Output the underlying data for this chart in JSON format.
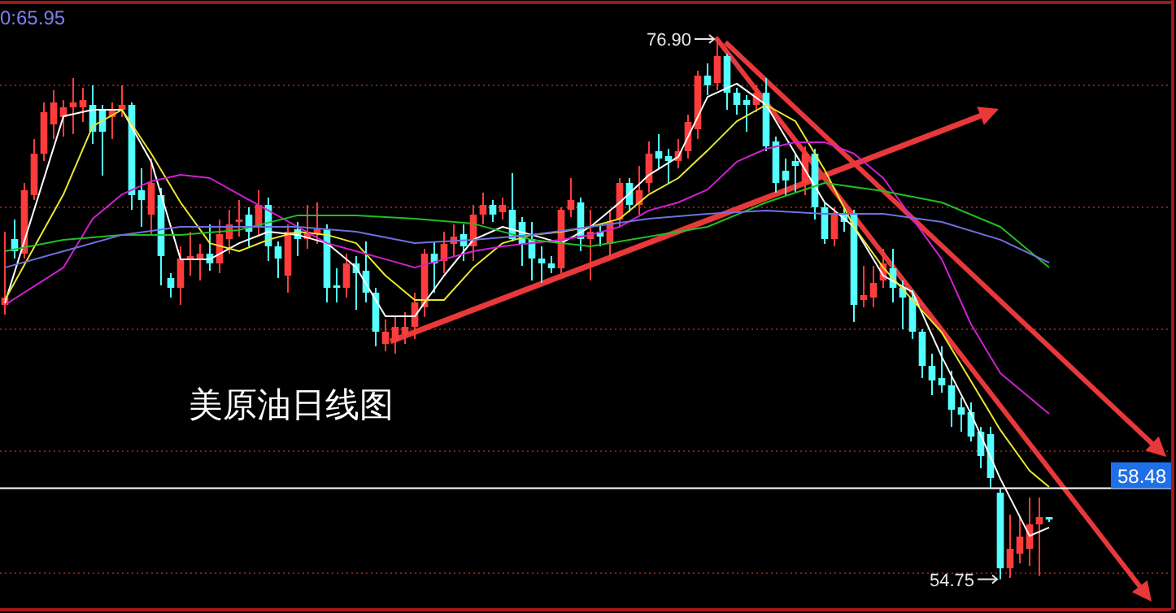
{
  "chart_data": {
    "type": "candlestick",
    "grid": "y",
    "ylim": [
      53.5,
      78.3
    ],
    "yticks": [
      {
        "value": 55,
        "label": null
      },
      {
        "value": 60,
        "label": null
      },
      {
        "value": 65,
        "label": null
      },
      {
        "value": 70,
        "label": null
      },
      {
        "value": 75,
        "label": null
      }
    ],
    "categories": [
      null,
      null,
      null,
      null,
      null,
      null,
      null,
      null,
      null,
      null,
      null,
      null,
      null,
      null,
      null,
      null,
      null,
      null,
      null,
      null,
      null,
      null,
      null,
      null,
      null,
      null,
      null,
      null,
      null,
      null,
      null,
      null,
      null,
      null,
      null,
      null,
      null,
      null,
      null,
      null,
      null,
      null,
      null,
      null,
      null,
      null,
      null,
      null,
      null,
      null,
      null,
      null,
      null,
      null,
      null,
      null,
      null,
      null,
      null,
      null,
      null,
      null,
      null,
      null,
      null,
      null,
      null,
      null,
      null,
      null,
      null,
      null,
      null,
      null,
      null,
      null,
      null,
      null,
      null,
      null,
      null,
      null,
      null,
      null,
      null,
      null,
      null,
      null,
      null,
      null,
      null,
      null,
      null,
      null,
      null,
      null,
      null,
      null,
      null,
      null,
      null,
      null,
      null,
      null,
      null,
      null,
      null,
      null
    ],
    "ohlc": [
      [
        66.0,
        69.0,
        65.6,
        66.3
      ],
      [
        68.7,
        69.5,
        67.9,
        68.2
      ],
      [
        68.1,
        71.0,
        67.9,
        70.7
      ],
      [
        70.5,
        72.8,
        70.3,
        72.2
      ],
      [
        72.2,
        74.3,
        71.9,
        73.9
      ],
      [
        73.4,
        74.8,
        72.8,
        74.3
      ],
      [
        73.7,
        74.4,
        72.9,
        74.1
      ],
      [
        74.1,
        75.3,
        73.0,
        74.3
      ],
      [
        74.1,
        74.9,
        73.5,
        74.4
      ],
      [
        74.2,
        75.0,
        72.6,
        73.1
      ],
      [
        74.0,
        74.2,
        71.3,
        73.1
      ],
      [
        73.7,
        74.3,
        72.8,
        74.0
      ],
      [
        74.0,
        75.0,
        73.7,
        74.2
      ],
      [
        74.2,
        74.3,
        69.9,
        70.5
      ],
      [
        70.7,
        71.6,
        69.2,
        70.3
      ],
      [
        69.7,
        72.0,
        68.9,
        71.0
      ],
      [
        70.5,
        70.8,
        66.8,
        68.0
      ],
      [
        67.1,
        67.3,
        66.3,
        66.7
      ],
      [
        66.7,
        68.4,
        66.0,
        67.9
      ],
      [
        67.9,
        69.0,
        67.2,
        68.0
      ],
      [
        67.9,
        68.5,
        67.0,
        68.1
      ],
      [
        68.1,
        69.3,
        67.4,
        67.7
      ],
      [
        67.7,
        69.5,
        67.3,
        68.9
      ],
      [
        68.7,
        69.9,
        68.1,
        69.3
      ],
      [
        69.4,
        70.3,
        68.8,
        69.5
      ],
      [
        69.7,
        70.0,
        68.4,
        69.0
      ],
      [
        69.2,
        70.7,
        68.8,
        70.1
      ],
      [
        70.1,
        70.4,
        67.8,
        68.4
      ],
      [
        68.4,
        68.6,
        67.1,
        67.9
      ],
      [
        67.2,
        69.3,
        66.5,
        69.0
      ],
      [
        69.1,
        69.4,
        68.0,
        68.7
      ],
      [
        68.7,
        70.1,
        68.3,
        69.0
      ],
      [
        68.9,
        70.2,
        68.5,
        69.1
      ],
      [
        69.1,
        69.3,
        66.1,
        66.7
      ],
      [
        66.8,
        67.5,
        66.1,
        66.7
      ],
      [
        66.7,
        68.1,
        66.3,
        67.7
      ],
      [
        67.7,
        68.0,
        65.8,
        67.3
      ],
      [
        67.4,
        68.6,
        66.1,
        66.5
      ],
      [
        66.5,
        66.7,
        64.3,
        64.9
      ],
      [
        64.4,
        65.4,
        64.1,
        64.9
      ],
      [
        64.5,
        65.5,
        64.0,
        65.1
      ],
      [
        64.8,
        65.7,
        64.4,
        65.1
      ],
      [
        65.1,
        66.5,
        64.6,
        66.1
      ],
      [
        65.9,
        68.3,
        65.5,
        68.1
      ],
      [
        68.1,
        68.6,
        66.5,
        67.7
      ],
      [
        67.8,
        69.0,
        67.3,
        68.5
      ],
      [
        68.5,
        69.3,
        68.0,
        68.8
      ],
      [
        68.9,
        69.3,
        67.8,
        68.4
      ],
      [
        68.4,
        70.1,
        67.8,
        69.7
      ],
      [
        69.7,
        70.6,
        69.3,
        70.1
      ],
      [
        70.1,
        70.3,
        69.4,
        69.7
      ],
      [
        69.8,
        70.4,
        69.5,
        70.1
      ],
      [
        69.9,
        71.4,
        68.6,
        68.7
      ],
      [
        69.4,
        69.6,
        67.6,
        68.5
      ],
      [
        68.7,
        69.4,
        67.0,
        67.9
      ],
      [
        67.9,
        68.4,
        66.9,
        67.7
      ],
      [
        67.7,
        68.0,
        67.3,
        67.5
      ],
      [
        67.5,
        70.0,
        67.3,
        69.9
      ],
      [
        69.9,
        71.2,
        69.6,
        70.3
      ],
      [
        70.2,
        70.4,
        68.2,
        68.7
      ],
      [
        68.7,
        69.9,
        67.0,
        69.0
      ],
      [
        69.0,
        69.3,
        68.4,
        68.8
      ],
      [
        68.5,
        69.9,
        68.0,
        69.4
      ],
      [
        69.5,
        71.2,
        69.2,
        71.0
      ],
      [
        71.0,
        71.2,
        69.8,
        70.1
      ],
      [
        70.1,
        71.7,
        69.7,
        70.7
      ],
      [
        71.0,
        72.7,
        70.6,
        72.2
      ],
      [
        72.3,
        73.0,
        71.6,
        72.0
      ],
      [
        72.1,
        72.4,
        71.0,
        71.9
      ],
      [
        71.9,
        72.8,
        71.6,
        72.3
      ],
      [
        72.3,
        73.8,
        72.0,
        73.5
      ],
      [
        73.2,
        75.6,
        72.8,
        75.4
      ],
      [
        75.4,
        75.9,
        74.6,
        75.0
      ],
      [
        75.1,
        76.9,
        74.8,
        76.2
      ],
      [
        76.2,
        76.3,
        74.0,
        74.7
      ],
      [
        74.7,
        74.9,
        73.8,
        74.2
      ],
      [
        74.4,
        74.6,
        73.1,
        74.2
      ],
      [
        74.2,
        75.0,
        73.9,
        74.7
      ],
      [
        74.7,
        75.3,
        72.3,
        72.5
      ],
      [
        72.7,
        72.9,
        70.6,
        71.0
      ],
      [
        71.5,
        72.0,
        70.5,
        71.1
      ],
      [
        71.9,
        72.2,
        70.6,
        71.7
      ],
      [
        71.0,
        72.5,
        70.5,
        72.2
      ],
      [
        72.2,
        72.4,
        69.5,
        70.0
      ],
      [
        70.0,
        70.2,
        68.5,
        68.7
      ],
      [
        68.7,
        70.0,
        68.4,
        69.7
      ],
      [
        69.7,
        70.0,
        69.0,
        69.4
      ],
      [
        69.7,
        69.9,
        65.3,
        66.0
      ],
      [
        66.2,
        67.6,
        65.9,
        66.4
      ],
      [
        66.3,
        67.6,
        65.9,
        66.9
      ],
      [
        67.0,
        68.3,
        66.7,
        67.7
      ],
      [
        67.5,
        68.3,
        66.1,
        66.7
      ],
      [
        66.7,
        67.0,
        65.0,
        66.3
      ],
      [
        66.3,
        66.6,
        64.6,
        64.9
      ],
      [
        64.9,
        65.0,
        63.0,
        63.5
      ],
      [
        63.5,
        64.0,
        62.3,
        62.9
      ],
      [
        63.0,
        64.3,
        62.4,
        62.7
      ],
      [
        62.7,
        63.3,
        61.0,
        61.7
      ],
      [
        61.8,
        62.2,
        60.8,
        61.5
      ],
      [
        61.6,
        62.0,
        60.4,
        60.6
      ],
      [
        60.8,
        61.0,
        59.3,
        59.8
      ],
      [
        60.7,
        61.0,
        58.5,
        58.9
      ],
      [
        58.3,
        58.5,
        54.75,
        55.2
      ],
      [
        55.2,
        57.4,
        54.8,
        56.0
      ],
      [
        55.8,
        57.3,
        55.4,
        56.5
      ],
      [
        56.0,
        58.1,
        55.3,
        57.0
      ],
      [
        57.0,
        58.1,
        54.9,
        57.3
      ],
      [
        57.3,
        57.3,
        57.1,
        57.2
      ]
    ],
    "series": [
      {
        "type": "line",
        "color": "#ffffff",
        "values": [
          66.07,
          null,
          null,
          null,
          null,
          null,
          73.73,
          null,
          null,
          74.0,
          null,
          null,
          74.0,
          null,
          null,
          71.87,
          null,
          null,
          67.87,
          null,
          null,
          67.87,
          null,
          null,
          68.53,
          null,
          null,
          69.0,
          null,
          null,
          68.87,
          null,
          null,
          68.53,
          null,
          null,
          67.53,
          null,
          null,
          65.53,
          null,
          null,
          65.53,
          null,
          null,
          67.2,
          null,
          null,
          68.67,
          null,
          null,
          69.2,
          null,
          null,
          68.87,
          null,
          null,
          68.53,
          null,
          null,
          69.2,
          null,
          null,
          70.2,
          null,
          null,
          71.33,
          null,
          null,
          72.07,
          null,
          null,
          74.53,
          null,
          null,
          75.07,
          null,
          null,
          74.2,
          null,
          null,
          72.2,
          null,
          null,
          70.2,
          null,
          null,
          69.2,
          null,
          null,
          67.2,
          null,
          null,
          66.53,
          null,
          null,
          63.87,
          null,
          null,
          61.53,
          null,
          null,
          58.87,
          null,
          null,
          56.53,
          null,
          56.87
        ]
      },
      {
        "type": "line",
        "color": "#e8e830",
        "values": [
          66.2,
          null,
          null,
          null,
          null,
          null,
          70.53,
          null,
          null,
          73.33,
          null,
          null,
          74.0,
          null,
          null,
          72.2,
          null,
          null,
          70.2,
          null,
          null,
          68.53,
          null,
          null,
          68.2,
          null,
          null,
          68.67,
          null,
          null,
          69.0,
          null,
          null,
          68.87,
          null,
          null,
          68.53,
          null,
          null,
          67.2,
          null,
          null,
          66.2,
          null,
          null,
          66.2,
          null,
          null,
          67.53,
          null,
          null,
          68.53,
          null,
          null,
          68.87,
          null,
          null,
          69.0,
          null,
          null,
          69.2,
          null,
          null,
          69.53,
          null,
          null,
          70.53,
          null,
          null,
          71.2,
          null,
          null,
          72.33,
          null,
          null,
          73.53,
          null,
          null,
          74.2,
          null,
          null,
          73.53,
          null,
          null,
          71.53,
          null,
          null,
          69.2,
          null,
          null,
          67.53,
          null,
          null,
          null,
          null,
          null,
          64.87,
          null,
          null,
          62.87,
          null,
          null,
          60.87,
          null,
          null,
          59.2,
          null,
          58.53
        ]
      },
      {
        "type": "line",
        "color": "#d020d0",
        "values": [
          66.0,
          null,
          null,
          null,
          null,
          null,
          67.53,
          null,
          null,
          69.53,
          null,
          null,
          70.53,
          null,
          null,
          71.07,
          null,
          null,
          71.33,
          null,
          null,
          71.2,
          null,
          null,
          70.53,
          null,
          null,
          69.87,
          null,
          null,
          69.2,
          null,
          null,
          68.53,
          null,
          null,
          68.2,
          null,
          null,
          67.87,
          null,
          null,
          67.53,
          null,
          null,
          67.87,
          null,
          null,
          68.2,
          null,
          null,
          68.4,
          null,
          null,
          68.53,
          null,
          null,
          68.67,
          null,
          null,
          68.87,
          null,
          null,
          69.2,
          null,
          null,
          69.87,
          null,
          null,
          70.2,
          null,
          null,
          70.73,
          null,
          null,
          71.87,
          null,
          null,
          72.4,
          null,
          null,
          72.67,
          null,
          null,
          72.67,
          null,
          null,
          72.2,
          null,
          null,
          71.2,
          null,
          null,
          null,
          null,
          null,
          67.87,
          null,
          null,
          65.2,
          null,
          null,
          63.2,
          null,
          null,
          null,
          null,
          61.53
        ]
      },
      {
        "type": "line",
        "color": "#20c020",
        "values": [
          68.2,
          null,
          null,
          null,
          null,
          null,
          68.67,
          null,
          null,
          null,
          null,
          null,
          68.87,
          null,
          null,
          null,
          null,
          null,
          68.87,
          null,
          null,
          null,
          null,
          null,
          69.07,
          null,
          null,
          null,
          null,
          null,
          69.67,
          null,
          null,
          null,
          null,
          null,
          69.67,
          null,
          null,
          null,
          null,
          null,
          69.53,
          null,
          null,
          null,
          null,
          null,
          69.33,
          null,
          null,
          null,
          null,
          null,
          68.67,
          null,
          null,
          null,
          null,
          null,
          68.4,
          null,
          null,
          null,
          null,
          null,
          null,
          null,
          null,
          null,
          null,
          null,
          69.2,
          null,
          null,
          null,
          null,
          null,
          70.2,
          null,
          null,
          null,
          null,
          null,
          71.0,
          null,
          null,
          null,
          null,
          null,
          70.67,
          null,
          null,
          null,
          null,
          null,
          70.2,
          null,
          null,
          null,
          null,
          null,
          69.2,
          null,
          null,
          null,
          null,
          67.53
        ]
      },
      {
        "type": "line",
        "color": "#7070e0",
        "values": [
          67.53,
          null,
          null,
          null,
          null,
          null,
          68.2,
          null,
          null,
          null,
          null,
          null,
          68.87,
          null,
          null,
          null,
          null,
          null,
          69.2,
          null,
          null,
          null,
          null,
          null,
          69.2,
          null,
          null,
          null,
          null,
          null,
          69.2,
          null,
          null,
          null,
          null,
          null,
          69.0,
          null,
          null,
          null,
          null,
          null,
          68.53,
          null,
          null,
          null,
          null,
          null,
          68.67,
          null,
          null,
          null,
          null,
          null,
          68.87,
          null,
          null,
          null,
          null,
          null,
          69.2,
          null,
          null,
          null,
          null,
          null,
          69.53,
          null,
          null,
          null,
          null,
          null,
          69.73,
          null,
          null,
          null,
          null,
          null,
          69.87,
          null,
          null,
          null,
          null,
          null,
          69.73,
          null,
          null,
          null,
          null,
          null,
          69.73,
          null,
          null,
          null,
          null,
          null,
          69.4,
          null,
          null,
          null,
          null,
          null,
          68.67,
          null,
          null,
          null,
          null,
          67.73
        ]
      }
    ],
    "ref_lines": [
      {
        "axis": "y",
        "value": 58.48,
        "label": "58.48",
        "color": "#ffffff"
      }
    ],
    "annotations": [
      "0:65.95",
      "美原油日线图",
      "76.90",
      "54.75"
    ]
  }
}
